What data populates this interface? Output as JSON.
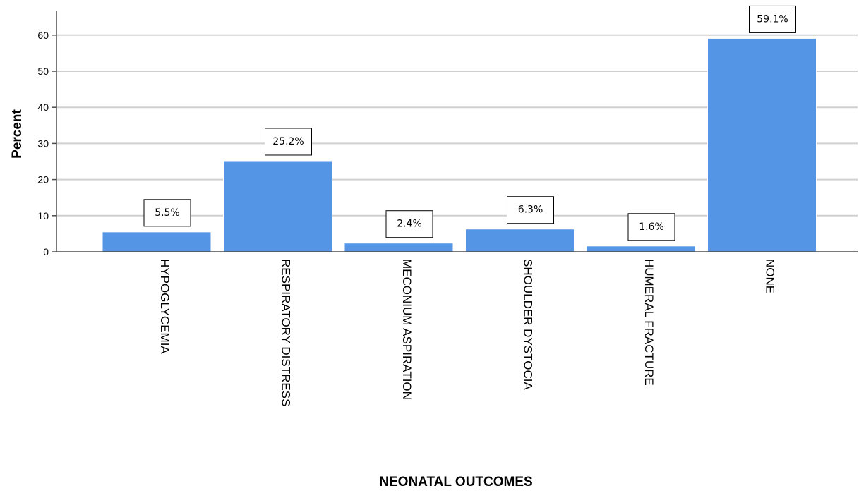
{
  "chart_data": {
    "type": "bar",
    "categories": [
      "HYPOGLYCEMIA",
      "RESPIRATORY DISTRESS",
      "MECONIUM ASPIRATION",
      "SHOULDER DYSTOCIA",
      "HUMERAL FRACTURE",
      "NONE"
    ],
    "values": [
      5.5,
      25.2,
      2.4,
      6.3,
      1.6,
      59.1
    ],
    "data_labels": [
      "5.5%",
      "25.2%",
      "2.4%",
      "6.3%",
      "1.6%",
      "59.1%"
    ],
    "xlabel": "NEONATAL OUTCOMES",
    "ylabel": "Percent",
    "ylim": [
      0,
      66.5
    ],
    "yticks": [
      0,
      10,
      20,
      30,
      40,
      50,
      60
    ],
    "grid": true,
    "bar_color": "#5595e5",
    "gridline_color": "#d0d0d0"
  }
}
